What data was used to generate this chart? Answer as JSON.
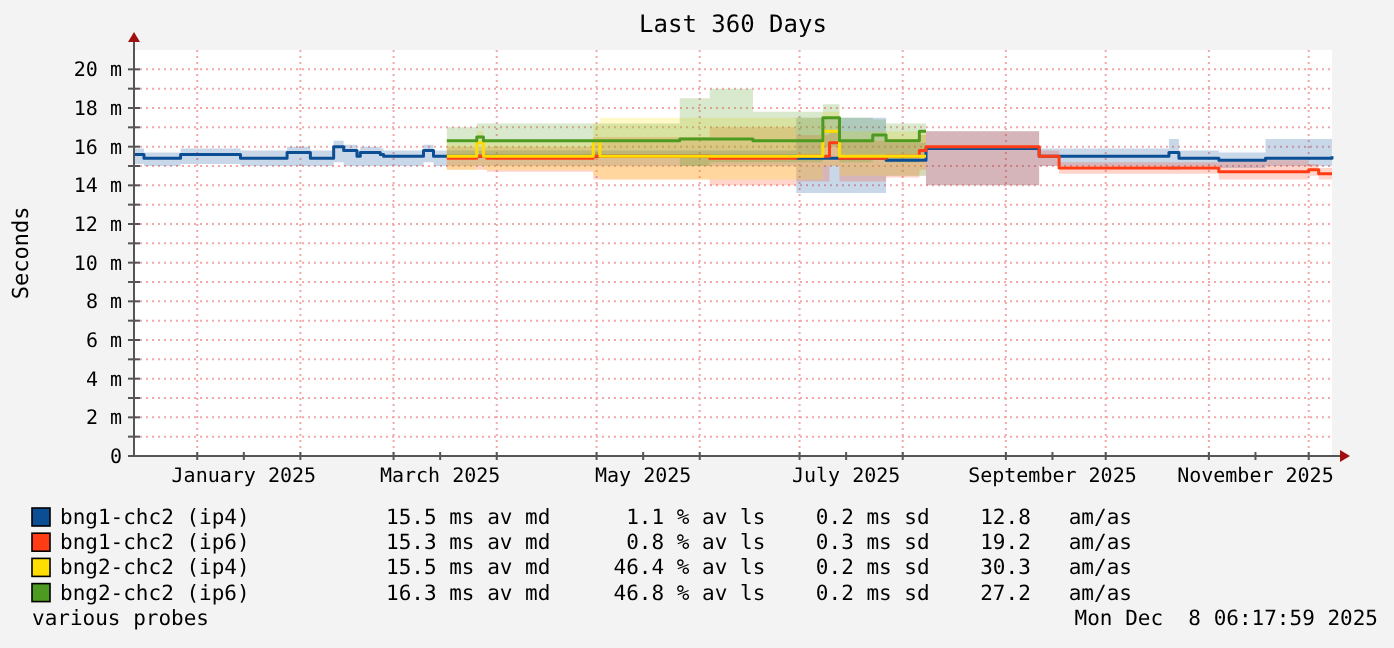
{
  "chart_data": {
    "type": "step",
    "title": "Last 360 Days",
    "ylabel": "Seconds",
    "grid": true,
    "legend": "bottom",
    "xlim": [
      "2024-12-13",
      "2025-12-08"
    ],
    "xticks": [
      {
        "value": "2025-01-01",
        "label": null
      },
      {
        "value": "2025-01-15",
        "label": "January 2025"
      },
      {
        "value": "2025-02-01",
        "label": null
      },
      {
        "value": "2025-03-01",
        "label": null
      },
      {
        "value": "2025-03-15",
        "label": "March 2025"
      },
      {
        "value": "2025-04-01",
        "label": null
      },
      {
        "value": "2025-05-01",
        "label": null
      },
      {
        "value": "2025-05-15",
        "label": "May 2025"
      },
      {
        "value": "2025-06-01",
        "label": null
      },
      {
        "value": "2025-07-01",
        "label": null
      },
      {
        "value": "2025-07-15",
        "label": "July 2025"
      },
      {
        "value": "2025-08-01",
        "label": null
      },
      {
        "value": "2025-09-01",
        "label": null
      },
      {
        "value": "2025-09-15",
        "label": "September 2025"
      },
      {
        "value": "2025-10-01",
        "label": null
      },
      {
        "value": "2025-11-01",
        "label": null
      },
      {
        "value": "2025-11-15",
        "label": "November 2025"
      },
      {
        "value": "2025-12-01",
        "label": null
      }
    ],
    "ylim": [
      0,
      21
    ],
    "yticks": [
      0,
      {
        "value": 1,
        "label": null
      },
      {
        "value": 2,
        "label": "2 m"
      },
      {
        "value": 3,
        "label": null
      },
      {
        "value": 4,
        "label": "4 m"
      },
      {
        "value": 5,
        "label": null
      },
      {
        "value": 6,
        "label": "6 m"
      },
      {
        "value": 7,
        "label": null
      },
      {
        "value": 8,
        "label": "8 m"
      },
      {
        "value": 9,
        "label": null
      },
      {
        "value": 10,
        "label": "10 m"
      },
      {
        "value": 11,
        "label": null
      },
      {
        "value": 12,
        "label": "12 m"
      },
      {
        "value": 13,
        "label": null
      },
      {
        "value": 14,
        "label": "14 m"
      },
      {
        "value": 15,
        "label": null
      },
      {
        "value": 16,
        "label": "16 m"
      },
      {
        "value": 17,
        "label": null
      },
      {
        "value": 18,
        "label": "18 m"
      },
      {
        "value": 19,
        "label": null
      },
      {
        "value": 20,
        "label": "20 m"
      }
    ],
    "series": [
      {
        "name": "bng1-chc2 (ip4)",
        "color": "#0b4e94",
        "x": [
          "2024-12-13",
          "2024-12-16",
          "2024-12-27",
          "2025-01-14",
          "2025-01-28",
          "2025-02-04",
          "2025-02-11",
          "2025-02-14",
          "2025-02-18",
          "2025-02-19",
          "2025-02-25",
          "2025-02-26",
          "2025-03-10",
          "2025-03-13",
          "2025-06-30",
          "2025-07-27",
          "2025-08-08",
          "2025-09-11",
          "2025-10-20",
          "2025-10-23",
          "2025-11-04",
          "2025-11-18",
          "2025-12-08"
        ],
        "values": [
          15.6,
          15.4,
          15.6,
          15.4,
          15.7,
          15.4,
          16,
          15.8,
          15.5,
          15.7,
          15.6,
          15.5,
          15.8,
          15.5,
          15.4,
          15.3,
          15.9,
          15.5,
          15.7,
          15.4,
          15.3,
          15.4,
          15.5
        ],
        "lower": [
          15.1,
          15,
          15.1,
          15,
          15,
          15,
          15.2,
          15,
          15,
          15,
          15,
          15,
          15.2,
          15,
          13.6,
          14.5,
          14,
          15,
          14.8,
          15,
          14.9,
          15,
          15
        ],
        "upper": [
          15.9,
          15.7,
          15.9,
          15.8,
          16,
          15.8,
          16.3,
          16.1,
          15.8,
          16,
          15.9,
          15.8,
          16.1,
          15.8,
          17.5,
          16.2,
          16.8,
          15.9,
          16.4,
          15.8,
          15.7,
          16.4,
          15.8
        ]
      },
      {
        "name": "bng1-chc2 (ip6)",
        "color": "#ff3c14",
        "x": [
          "2025-03-17",
          "2025-03-26",
          "2025-03-29",
          "2025-04-30",
          "2025-06-04",
          "2025-06-30",
          "2025-07-10",
          "2025-07-13",
          "2025-07-27",
          "2025-08-06",
          "2025-08-08",
          "2025-09-11",
          "2025-09-17",
          "2025-11-04",
          "2025-12-01",
          "2025-12-04",
          "2025-12-08"
        ],
        "values": [
          15.4,
          15.5,
          15.4,
          15.5,
          15.4,
          15.5,
          16.2,
          15.4,
          15.5,
          15.8,
          16,
          15.5,
          14.9,
          14.7,
          14.8,
          14.6,
          14.6
        ],
        "lower": [
          14.8,
          14.8,
          14.7,
          14.3,
          14,
          14.2,
          15,
          14.2,
          14.4,
          14.8,
          14,
          15,
          14.6,
          14.3,
          14.5,
          14.3,
          14.3
        ],
        "upper": [
          16,
          16,
          16,
          16.5,
          17,
          16.6,
          16.8,
          16.3,
          16.4,
          16.6,
          16.8,
          15.8,
          15.2,
          15.3,
          15.1,
          14.9,
          14.9
        ]
      },
      {
        "name": "bng2-chc2 (ip4)",
        "color": "#ffdd00",
        "x": [
          "2025-03-17",
          "2025-03-26",
          "2025-03-28",
          "2025-04-30",
          "2025-05-02",
          "2025-07-08",
          "2025-07-13",
          "2025-08-08"
        ],
        "values": [
          15.5,
          16.2,
          15.5,
          16.3,
          15.5,
          16.8,
          15.5,
          15.5
        ],
        "lower": [
          14.8,
          15,
          14.8,
          14.5,
          14.3,
          15,
          14.5,
          14.5
        ],
        "upper": [
          16.2,
          16.8,
          16.3,
          17.2,
          17.5,
          17.8,
          16.8,
          16.5
        ]
      },
      {
        "name": "bng2-chc2 (ip6)",
        "color": "#4c9a1f",
        "x": [
          "2025-03-17",
          "2025-03-26",
          "2025-03-28",
          "2025-05-26",
          "2025-06-04",
          "2025-06-17",
          "2025-07-08",
          "2025-07-13",
          "2025-07-23",
          "2025-07-27",
          "2025-08-06",
          "2025-08-08"
        ],
        "values": [
          16.3,
          16.5,
          16.3,
          16.4,
          16.4,
          16.3,
          17.5,
          16.3,
          16.6,
          16.3,
          16.8,
          16.8
        ],
        "lower": [
          15.5,
          15.5,
          15.5,
          15,
          15.2,
          15.2,
          16,
          15.2,
          15.5,
          15.2,
          15.5,
          15.5
        ],
        "upper": [
          17,
          17.2,
          17.2,
          18.5,
          19,
          17.8,
          18.2,
          17.5,
          17.4,
          17.2,
          17.2,
          17.2
        ]
      }
    ],
    "annotations": [
      "15.5 ms av md      1.1 % av ls    0.2 ms sd    12.8   am/as",
      "15.3 ms av md      0.8 % av ls    0.3 ms sd    19.2   am/as",
      "15.5 ms av md     46.4 % av ls    0.2 ms sd    30.3   am/as",
      "16.3 ms av md     46.8 % av ls    0.2 ms sd    27.2   am/as",
      "various probes",
      "Mon Dec  8 06:17:59 2025"
    ]
  }
}
